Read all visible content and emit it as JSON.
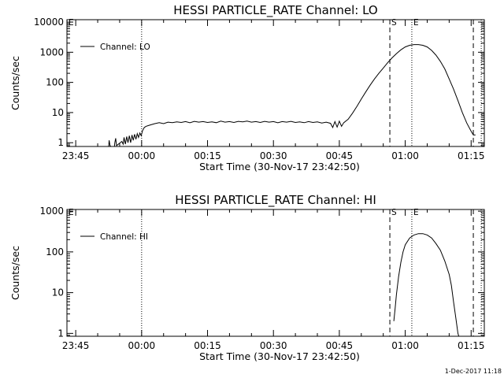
{
  "footer": {
    "timestamp": "1-Dec-2017 11:18"
  },
  "chart_data": [
    {
      "type": "line",
      "title": "HESSI PARTICLE_RATE Channel: LO",
      "xlabel": "Start Time (30-Nov-17 23:42:50)",
      "ylabel": "Counts/sec",
      "y_scale": "log",
      "xlim_minutes": [
        -17,
        78
      ],
      "ylim": [
        0.75,
        12000
      ],
      "x_ticks": [
        {
          "min": -15,
          "label": "23:45"
        },
        {
          "min": 0,
          "label": "00:00"
        },
        {
          "min": 15,
          "label": "00:15"
        },
        {
          "min": 30,
          "label": "00:30"
        },
        {
          "min": 45,
          "label": "00:45"
        },
        {
          "min": 60,
          "label": "01:00"
        },
        {
          "min": 75,
          "label": "01:15"
        }
      ],
      "y_ticks": [
        {
          "value": 1,
          "label": "1"
        },
        {
          "value": 10,
          "label": "10"
        },
        {
          "value": 100,
          "label": "100"
        },
        {
          "value": 1000,
          "label": "1000"
        },
        {
          "value": 10000,
          "label": "10000"
        }
      ],
      "markers": [
        {
          "min": -17,
          "style": "dashed",
          "label": "E"
        },
        {
          "min": 0,
          "style": "dotted",
          "label": ""
        },
        {
          "min": 56.5,
          "style": "dashed",
          "label": "S"
        },
        {
          "min": 61.5,
          "style": "dotted",
          "label": "E"
        },
        {
          "min": 75.5,
          "style": "dashed",
          "label": ""
        },
        {
          "min": 77.3,
          "style": "dotted",
          "label": ""
        }
      ],
      "legend": {
        "label": "Channel: LO",
        "position": "top-left"
      },
      "series": [
        {
          "x": [
            -7.5,
            -7.4,
            -7.2,
            -7.0,
            -6.2,
            -6.1,
            -5.9,
            -5.7,
            -4.5,
            -4.2,
            -4.0,
            -3.7,
            -3.4,
            -3.1,
            -2.8,
            -2.5,
            -2.2,
            -1.9,
            -1.6,
            -1.3,
            -1.0,
            -0.7,
            -0.4,
            -0.1,
            0.2,
            0.6,
            1.0,
            1.5,
            2.0,
            3,
            4,
            5,
            6,
            7,
            8,
            9,
            10,
            11,
            12,
            13,
            14,
            15,
            16,
            17,
            18,
            19,
            20,
            21,
            22,
            23,
            24,
            25,
            26,
            27,
            28,
            29,
            30,
            31,
            32,
            33,
            34,
            35,
            36,
            37,
            38,
            39,
            40,
            41,
            42,
            43,
            43.5,
            44,
            44.5,
            45,
            45.5,
            46,
            47,
            48,
            49,
            50,
            51,
            52,
            53,
            54,
            55,
            56,
            57,
            58,
            59,
            60,
            61,
            62,
            63,
            64,
            65,
            66,
            67,
            68,
            69,
            70,
            71,
            72,
            73,
            74,
            75,
            75.5,
            76
          ],
          "values": [
            0.75,
            1.2,
            0.8,
            0.75,
            0.75,
            1.0,
            1.4,
            0.8,
            1.1,
            0.9,
            1.5,
            0.9,
            1.6,
            1.0,
            1.7,
            1.0,
            1.8,
            1.2,
            1.9,
            1.3,
            2.0,
            1.5,
            2.1,
            1.7,
            2.5,
            3.2,
            3.5,
            3.7,
            3.9,
            4.3,
            4.6,
            4.3,
            4.8,
            4.6,
            4.9,
            4.7,
            5.0,
            4.6,
            5.1,
            4.8,
            5.0,
            4.7,
            4.9,
            4.6,
            5.2,
            4.8,
            5.0,
            4.7,
            5.1,
            4.9,
            5.2,
            4.8,
            5.0,
            4.7,
            5.1,
            4.8,
            5.0,
            4.6,
            5.0,
            4.8,
            5.1,
            4.7,
            4.9,
            4.6,
            5.0,
            4.7,
            4.9,
            4.5,
            4.8,
            4.4,
            3.2,
            5.0,
            3.3,
            5.2,
            3.5,
            4.6,
            6.0,
            9.5,
            16,
            28,
            48,
            80,
            130,
            200,
            300,
            450,
            650,
            900,
            1200,
            1500,
            1700,
            1800,
            1800,
            1700,
            1500,
            1150,
            800,
            500,
            280,
            130,
            60,
            25,
            10,
            4.5,
            2.4,
            1.8,
            1.8
          ]
        }
      ]
    },
    {
      "type": "line",
      "title": "HESSI PARTICLE_RATE Channel: HI",
      "xlabel": "Start Time (30-Nov-17 23:42:50)",
      "ylabel": "Counts/sec",
      "y_scale": "log",
      "xlim_minutes": [
        -17,
        78
      ],
      "ylim": [
        0.85,
        1100
      ],
      "x_ticks": [
        {
          "min": -15,
          "label": "23:45"
        },
        {
          "min": 0,
          "label": "00:00"
        },
        {
          "min": 15,
          "label": "00:15"
        },
        {
          "min": 30,
          "label": "00:30"
        },
        {
          "min": 45,
          "label": "00:45"
        },
        {
          "min": 60,
          "label": "01:00"
        },
        {
          "min": 75,
          "label": "01:15"
        }
      ],
      "y_ticks": [
        {
          "value": 1,
          "label": "1"
        },
        {
          "value": 10,
          "label": "10"
        },
        {
          "value": 100,
          "label": "100"
        },
        {
          "value": 1000,
          "label": "1000"
        }
      ],
      "markers": [
        {
          "min": -17,
          "style": "dashed",
          "label": "E"
        },
        {
          "min": 0,
          "style": "dotted",
          "label": ""
        },
        {
          "min": 56.5,
          "style": "dashed",
          "label": "S"
        },
        {
          "min": 61.5,
          "style": "dotted",
          "label": "E"
        },
        {
          "min": 75.5,
          "style": "dashed",
          "label": ""
        },
        {
          "min": 77.3,
          "style": "dotted",
          "label": ""
        }
      ],
      "legend": {
        "label": "Channel: HI",
        "position": "top-left"
      },
      "series": [
        {
          "x": [
            57.4,
            57.7,
            58.0,
            58.5,
            59,
            59.5,
            60,
            61,
            62,
            63,
            64,
            65,
            66,
            67,
            68,
            69,
            70,
            70.5,
            71,
            71.5,
            72,
            72.2
          ],
          "values": [
            2.0,
            4.0,
            9.0,
            25,
            55,
            100,
            150,
            220,
            260,
            280,
            280,
            260,
            220,
            160,
            110,
            60,
            28,
            15,
            6,
            2.5,
            1.0,
            0.85
          ]
        }
      ]
    }
  ]
}
